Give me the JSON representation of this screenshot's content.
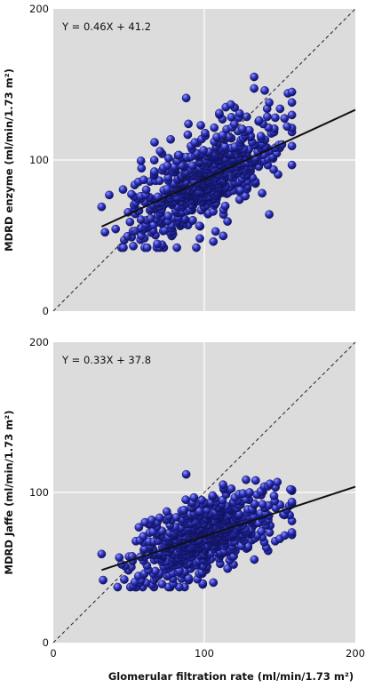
{
  "colors": {
    "point_fill": "#2a2fb8",
    "point_highlight": "#8f93ff",
    "point_edge": "#10135e",
    "plot_background": "#dcdcdc",
    "grid": "#ffffff",
    "line": "#111111"
  },
  "chart_data": [
    {
      "type": "scatter",
      "ylabel": "MDRD enzyme (ml/min/1.73 m²)",
      "xlabel": "",
      "equation": "Y = 0.46X + 41.2",
      "slope": 0.46,
      "intercept": 41.2,
      "fit_x_range": [
        32,
        200
      ],
      "identity_line": true,
      "xlim": [
        0,
        200
      ],
      "ylim": [
        0,
        200
      ],
      "x_ticks": [],
      "y_ticks": [
        "0",
        "100",
        "200"
      ],
      "grid": true,
      "point_seed": 1,
      "point_count": 700,
      "spread": {
        "x_mean": 100,
        "x_sd": 23,
        "x_min": 33,
        "x_max": 158,
        "y_sd": 14,
        "y_min": 42,
        "y_max": 155
      },
      "points": [
        {
          "x": 32,
          "y": 69
        },
        {
          "x": 47,
          "y": 47
        },
        {
          "x": 53,
          "y": 43
        },
        {
          "x": 54,
          "y": 53
        },
        {
          "x": 88,
          "y": 141
        },
        {
          "x": 133,
          "y": 155
        },
        {
          "x": 158,
          "y": 145
        },
        {
          "x": 140,
          "y": 146
        },
        {
          "x": 143,
          "y": 138
        },
        {
          "x": 106,
          "y": 46
        },
        {
          "x": 72,
          "y": 44
        },
        {
          "x": 150,
          "y": 108
        },
        {
          "x": 147,
          "y": 128
        },
        {
          "x": 143,
          "y": 64
        },
        {
          "x": 110,
          "y": 130
        },
        {
          "x": 123,
          "y": 128
        }
      ]
    },
    {
      "type": "scatter",
      "ylabel": "MDRD Jaffe (ml/min/1.73 m²)",
      "xlabel": "Glomerular filtration rate (ml/min/1.73 m²)",
      "equation": "Y = 0.33X + 37.8",
      "slope": 0.33,
      "intercept": 37.8,
      "fit_x_range": [
        32,
        200
      ],
      "identity_line": true,
      "xlim": [
        0,
        200
      ],
      "ylim": [
        0,
        200
      ],
      "x_ticks": [
        "0",
        "100",
        "200"
      ],
      "y_ticks": [
        "0",
        "100",
        "200"
      ],
      "grid": true,
      "point_seed": 7,
      "point_count": 700,
      "spread": {
        "x_mean": 100,
        "x_sd": 23,
        "x_min": 33,
        "x_max": 158,
        "y_sd": 12,
        "y_min": 37,
        "y_max": 110
      },
      "points": [
        {
          "x": 32,
          "y": 59
        },
        {
          "x": 47,
          "y": 42
        },
        {
          "x": 53,
          "y": 38
        },
        {
          "x": 55,
          "y": 37
        },
        {
          "x": 88,
          "y": 112
        },
        {
          "x": 134,
          "y": 108
        },
        {
          "x": 157,
          "y": 102
        },
        {
          "x": 106,
          "y": 40
        },
        {
          "x": 72,
          "y": 39
        },
        {
          "x": 153,
          "y": 85
        },
        {
          "x": 130,
          "y": 100
        },
        {
          "x": 140,
          "y": 90
        }
      ]
    }
  ]
}
